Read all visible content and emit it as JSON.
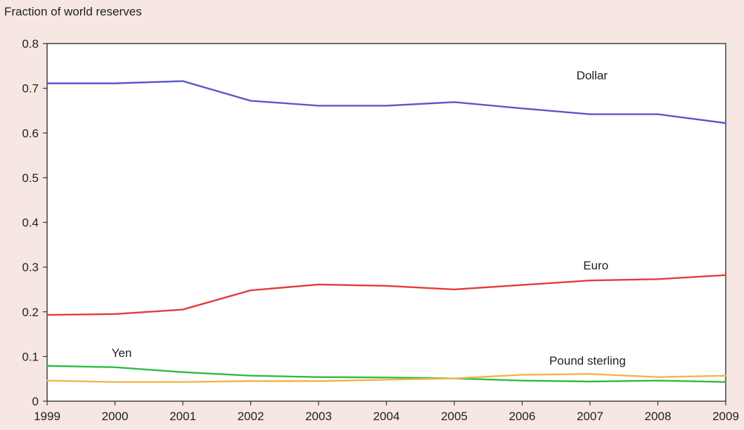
{
  "chart_data": {
    "type": "line",
    "title": "",
    "ylabel": "Fraction of world reserves",
    "xlabel": "",
    "x": [
      1999,
      2000,
      2001,
      2002,
      2003,
      2004,
      2005,
      2006,
      2007,
      2008,
      2009
    ],
    "x_tick_labels": [
      "1999",
      "2000",
      "2001",
      "2002",
      "2003",
      "2004",
      "2005",
      "2006",
      "2007",
      "2008",
      "2009"
    ],
    "y_tick_labels": [
      "0",
      "0.1",
      "0.2",
      "0.3",
      "0.4",
      "0.5",
      "0.6",
      "0.7",
      "0.8"
    ],
    "xlim": [
      1999,
      2009
    ],
    "ylim": [
      0,
      0.8
    ],
    "grid": false,
    "series": [
      {
        "name": "Dollar",
        "color": "#5a58c9",
        "values": [
          0.711,
          0.711,
          0.716,
          0.672,
          0.661,
          0.661,
          0.669,
          0.655,
          0.642,
          0.642,
          0.622
        ],
        "label_anchor": [
          2006.8,
          0.72
        ]
      },
      {
        "name": "Euro",
        "color": "#e43a3a",
        "values": [
          0.193,
          0.195,
          0.205,
          0.248,
          0.261,
          0.258,
          0.25,
          0.26,
          0.27,
          0.273,
          0.282
        ],
        "label_anchor": [
          2006.9,
          0.295
        ]
      },
      {
        "name": "Yen",
        "color": "#2fbb43",
        "values": [
          0.079,
          0.076,
          0.065,
          0.057,
          0.054,
          0.053,
          0.051,
          0.046,
          0.044,
          0.046,
          0.043
        ],
        "label_anchor": [
          1999.95,
          0.099
        ]
      },
      {
        "name": "Pound sterling",
        "color": "#f2b54b",
        "values": [
          0.046,
          0.043,
          0.043,
          0.045,
          0.045,
          0.048,
          0.051,
          0.059,
          0.061,
          0.054,
          0.057
        ],
        "label_anchor": [
          2006.4,
          0.082
        ]
      }
    ],
    "axis_color": "#333333",
    "background_color": "#f6e7e3"
  }
}
